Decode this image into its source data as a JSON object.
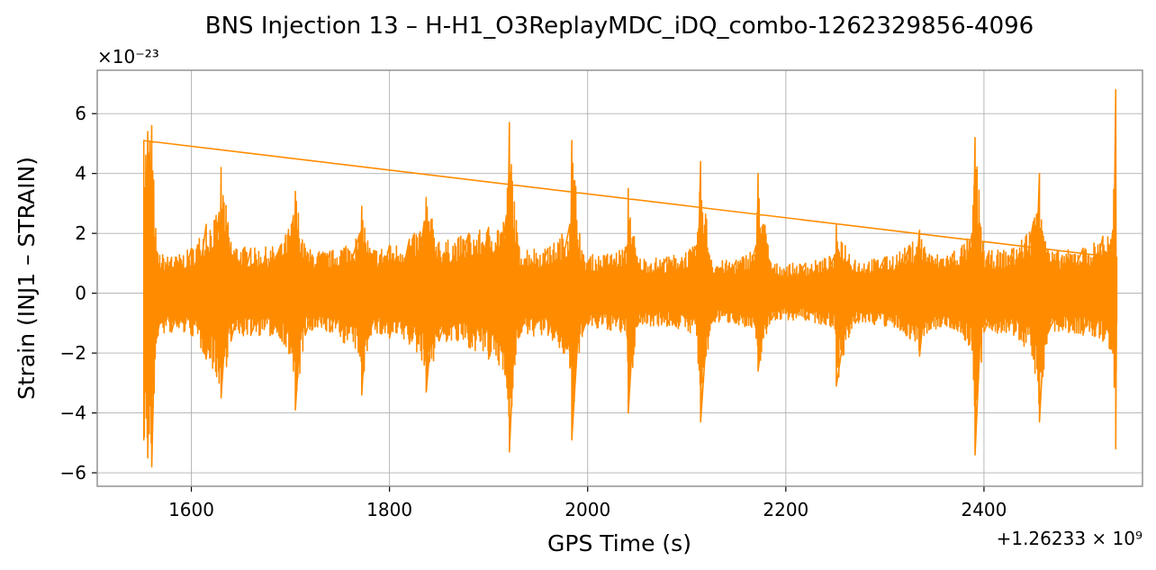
{
  "chart_data": {
    "type": "line",
    "title": "BNS Injection 13 – H-H1_O3ReplayMDC_iDQ_combo-1262329856-4096",
    "xlabel": "GPS Time (s)",
    "ylabel": "Strain (INJ1 – STRAIN)",
    "x_offset_label": "+1.26233 × 10⁹",
    "y_scale_label": "×10⁻²³",
    "xlim": [
      1505,
      2560
    ],
    "ylim": [
      -6.45,
      7.45
    ],
    "x_ticks": [
      1600,
      1800,
      2000,
      2200,
      2400
    ],
    "x_tick_labels": [
      "1600",
      "1800",
      "2000",
      "2200",
      "2400"
    ],
    "y_ticks": [
      -6,
      -4,
      -2,
      0,
      2,
      4,
      6
    ],
    "y_tick_labels": [
      "−6",
      "−4",
      "−2",
      "0",
      "2",
      "4",
      "6"
    ],
    "grid": true,
    "series": [
      {
        "color": "#ff8c00",
        "data_range": [
          1552,
          2534
        ],
        "envelope": [
          [
            1552,
            -4.9,
            5.1
          ],
          [
            1556,
            -5.5,
            5.4
          ],
          [
            1560,
            -5.8,
            5.6
          ],
          [
            1565,
            -1.5,
            1.4
          ],
          [
            1580,
            -1.3,
            1.2
          ],
          [
            1600,
            -1.4,
            1.5
          ],
          [
            1615,
            -2.2,
            2.3
          ],
          [
            1628,
            -3.0,
            2.7
          ],
          [
            1630,
            -3.5,
            4.2
          ],
          [
            1640,
            -1.6,
            1.7
          ],
          [
            1660,
            -1.4,
            1.5
          ],
          [
            1690,
            -1.5,
            1.6
          ],
          [
            1703,
            -2.6,
            2.6
          ],
          [
            1705,
            -3.9,
            3.4
          ],
          [
            1715,
            -1.4,
            1.5
          ],
          [
            1740,
            -1.3,
            1.4
          ],
          [
            1770,
            -2.1,
            2.0
          ],
          [
            1772,
            -3.4,
            2.9
          ],
          [
            1780,
            -1.4,
            1.5
          ],
          [
            1800,
            -1.5,
            1.6
          ],
          [
            1820,
            -1.7,
            1.8
          ],
          [
            1835,
            -2.4,
            2.4
          ],
          [
            1837,
            -3.3,
            3.2
          ],
          [
            1850,
            -1.6,
            1.7
          ],
          [
            1880,
            -1.8,
            2.0
          ],
          [
            1900,
            -2.2,
            2.2
          ],
          [
            1918,
            -2.8,
            2.6
          ],
          [
            1921,
            -5.3,
            5.7
          ],
          [
            1930,
            -1.5,
            1.6
          ],
          [
            1960,
            -1.4,
            1.5
          ],
          [
            1982,
            -2.5,
            2.3
          ],
          [
            1984,
            -4.9,
            5.1
          ],
          [
            1995,
            -1.3,
            1.3
          ],
          [
            2020,
            -1.2,
            1.3
          ],
          [
            2040,
            -1.5,
            1.6
          ],
          [
            2041,
            -4.0,
            3.5
          ],
          [
            2050,
            -1.1,
            1.2
          ],
          [
            2080,
            -1.1,
            1.2
          ],
          [
            2110,
            -1.4,
            1.6
          ],
          [
            2114,
            -4.3,
            4.4
          ],
          [
            2125,
            -1.0,
            1.1
          ],
          [
            2150,
            -1.0,
            1.1
          ],
          [
            2170,
            -1.5,
            1.6
          ],
          [
            2172,
            -2.6,
            4.0
          ],
          [
            2185,
            -0.9,
            1.0
          ],
          [
            2220,
            -0.9,
            1.0
          ],
          [
            2250,
            -1.2,
            1.3
          ],
          [
            2251,
            -3.1,
            2.3
          ],
          [
            2270,
            -1.0,
            1.1
          ],
          [
            2300,
            -1.1,
            1.2
          ],
          [
            2325,
            -1.5,
            1.6
          ],
          [
            2335,
            -2.1,
            2.1
          ],
          [
            2345,
            -1.2,
            1.3
          ],
          [
            2370,
            -1.2,
            1.4
          ],
          [
            2388,
            -1.9,
            2.0
          ],
          [
            2391,
            -5.4,
            5.2
          ],
          [
            2400,
            -1.3,
            1.4
          ],
          [
            2430,
            -1.4,
            1.5
          ],
          [
            2450,
            -2.2,
            2.4
          ],
          [
            2456,
            -4.3,
            4.0
          ],
          [
            2465,
            -1.3,
            1.4
          ],
          [
            2500,
            -1.4,
            1.5
          ],
          [
            2520,
            -1.6,
            1.9
          ],
          [
            2530,
            -2.0,
            2.1
          ],
          [
            2533,
            -5.2,
            6.8
          ],
          [
            2534,
            -1.0,
            1.2
          ]
        ]
      }
    ]
  }
}
